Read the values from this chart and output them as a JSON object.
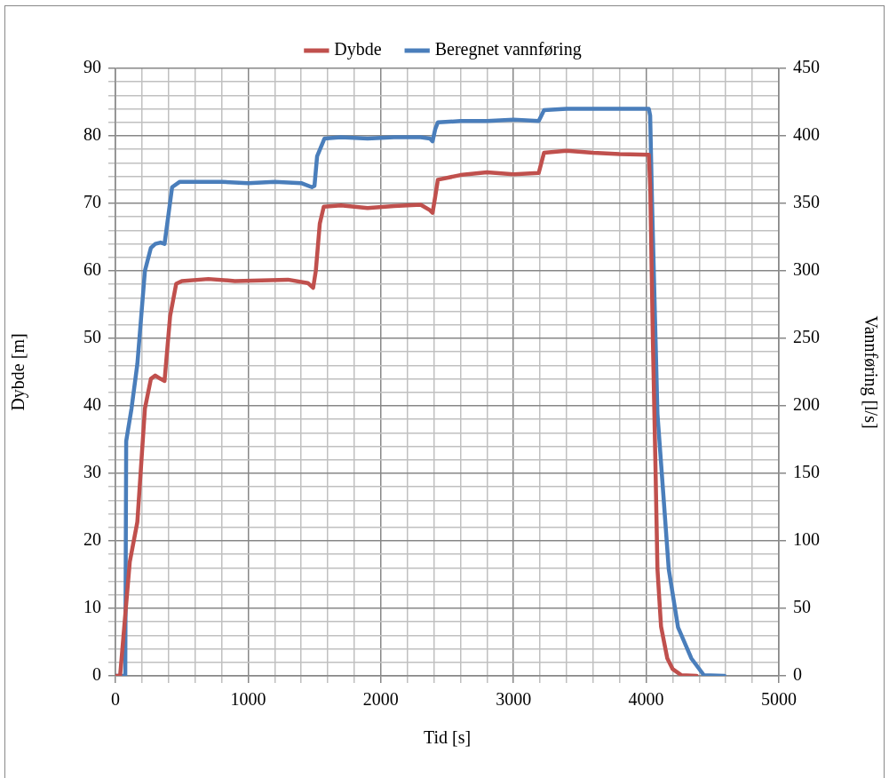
{
  "chart_data": {
    "type": "line",
    "xlabel": "Tid [s]",
    "ylabel": "Dybde [m]",
    "y2label": "Vannføring [l/s]",
    "legend": "top",
    "grid": true,
    "marker": "none",
    "line_style": "solid",
    "xlim": [
      0,
      5000
    ],
    "xticks": [
      0,
      {
        "value": 200,
        "label": null
      },
      {
        "value": 400,
        "label": null
      },
      {
        "value": 600,
        "label": null
      },
      {
        "value": 800,
        "label": null
      },
      1000,
      {
        "value": 1200,
        "label": null
      },
      {
        "value": 1400,
        "label": null
      },
      {
        "value": 1600,
        "label": null
      },
      {
        "value": 1800,
        "label": null
      },
      2000,
      {
        "value": 2200,
        "label": null
      },
      {
        "value": 2400,
        "label": null
      },
      {
        "value": 2600,
        "label": null
      },
      {
        "value": 2800,
        "label": null
      },
      3000,
      {
        "value": 3200,
        "label": null
      },
      {
        "value": 3400,
        "label": null
      },
      {
        "value": 3600,
        "label": null
      },
      {
        "value": 3800,
        "label": null
      },
      4000,
      {
        "value": 4200,
        "label": null
      },
      {
        "value": 4400,
        "label": null
      },
      {
        "value": 4600,
        "label": null
      },
      {
        "value": 4800,
        "label": null
      },
      5000
    ],
    "ylim": [
      0,
      90
    ],
    "yticks": [
      0,
      {
        "value": 2,
        "label": null
      },
      {
        "value": 4,
        "label": null
      },
      {
        "value": 6,
        "label": null
      },
      {
        "value": 8,
        "label": null
      },
      10,
      {
        "value": 12,
        "label": null
      },
      {
        "value": 14,
        "label": null
      },
      {
        "value": 16,
        "label": null
      },
      {
        "value": 18,
        "label": null
      },
      20,
      {
        "value": 22,
        "label": null
      },
      {
        "value": 24,
        "label": null
      },
      {
        "value": 26,
        "label": null
      },
      {
        "value": 28,
        "label": null
      },
      30,
      {
        "value": 32,
        "label": null
      },
      {
        "value": 34,
        "label": null
      },
      {
        "value": 36,
        "label": null
      },
      {
        "value": 38,
        "label": null
      },
      40,
      {
        "value": 42,
        "label": null
      },
      {
        "value": 44,
        "label": null
      },
      {
        "value": 46,
        "label": null
      },
      {
        "value": 48,
        "label": null
      },
      50,
      {
        "value": 52,
        "label": null
      },
      {
        "value": 54,
        "label": null
      },
      {
        "value": 56,
        "label": null
      },
      {
        "value": 58,
        "label": null
      },
      60,
      {
        "value": 62,
        "label": null
      },
      {
        "value": 64,
        "label": null
      },
      {
        "value": 66,
        "label": null
      },
      {
        "value": 68,
        "label": null
      },
      70,
      {
        "value": 72,
        "label": null
      },
      {
        "value": 74,
        "label": null
      },
      {
        "value": 76,
        "label": null
      },
      {
        "value": 78,
        "label": null
      },
      80,
      {
        "value": 82,
        "label": null
      },
      {
        "value": 84,
        "label": null
      },
      {
        "value": 86,
        "label": null
      },
      {
        "value": 88,
        "label": null
      },
      90
    ],
    "y2lim": [
      0,
      450
    ],
    "y2ticks": [
      0,
      50,
      100,
      150,
      200,
      250,
      300,
      350,
      400,
      450
    ],
    "series": [
      {
        "name": "Dybde",
        "color": "#c0504d",
        "x": [
          0,
          35,
          108,
          165,
          222,
          267,
          300,
          340,
          370,
          412,
          458,
          500,
          700,
          900,
          1100,
          1300,
          1450,
          1490,
          1510,
          1540,
          1570,
          1700,
          1900,
          2100,
          2300,
          2370,
          2390,
          2410,
          2430,
          2600,
          2800,
          3000,
          3190,
          3210,
          3230,
          3400,
          3600,
          3800,
          4020,
          4031,
          4050,
          4071,
          4085,
          4112,
          4159,
          4200,
          4266,
          4380
        ],
        "values": [
          0,
          0,
          16.9,
          22.8,
          39.6,
          44,
          44.5,
          44,
          43.7,
          53.3,
          58.1,
          58.5,
          58.8,
          58.5,
          58.6,
          58.7,
          58.2,
          57.5,
          60,
          67,
          69.5,
          69.7,
          69.3,
          69.6,
          69.8,
          69,
          68.6,
          71,
          73.5,
          74.2,
          74.6,
          74.3,
          74.5,
          76,
          77.5,
          77.8,
          77.5,
          77.3,
          77.2,
          72,
          50,
          30,
          15.8,
          7.3,
          2.6,
          1,
          0.1,
          0
        ]
      },
      {
        "name": "Beregnet vannføring",
        "color": "#4a7ebb",
        "axis": "y2",
        "x": [
          0,
          74,
          81,
          121,
          165,
          222,
          267,
          300,
          340,
          370,
          427,
          485,
          600,
          800,
          1000,
          1200,
          1400,
          1480,
          1500,
          1520,
          1575,
          1700,
          1900,
          2100,
          2300,
          2370,
          2390,
          2410,
          2430,
          2600,
          2800,
          3000,
          3190,
          3210,
          3230,
          3400,
          3600,
          3800,
          4020,
          4030,
          4044,
          4085,
          4128,
          4170,
          4240,
          4340,
          4435,
          4590
        ],
        "values": [
          0,
          0,
          174,
          198,
          231,
          300,
          317,
          320,
          321,
          320,
          362,
          366,
          366,
          366,
          365,
          366,
          365,
          362,
          363,
          385,
          398,
          399,
          398,
          399,
          399,
          398,
          396,
          405,
          410,
          411,
          411,
          412,
          411,
          415,
          419,
          420,
          420,
          420,
          420,
          415,
          351,
          194,
          136,
          79,
          36,
          13,
          0.5,
          0
        ]
      }
    ]
  }
}
